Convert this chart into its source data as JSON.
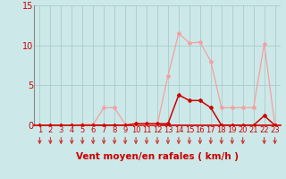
{
  "x": [
    1,
    2,
    3,
    4,
    5,
    6,
    7,
    8,
    9,
    10,
    11,
    12,
    13,
    14,
    15,
    16,
    17,
    18,
    19,
    20,
    21,
    22,
    23
  ],
  "y_rafales": [
    0.0,
    0.0,
    0.0,
    0.0,
    0.1,
    0.1,
    2.2,
    2.2,
    0.1,
    0.1,
    0.1,
    0.1,
    6.2,
    11.5,
    10.3,
    10.4,
    8.0,
    2.2,
    2.2,
    2.2,
    2.2,
    10.2,
    0.0
  ],
  "y_moyen": [
    0.0,
    0.0,
    0.0,
    0.0,
    0.0,
    0.0,
    0.0,
    0.0,
    0.0,
    0.2,
    0.2,
    0.2,
    0.2,
    3.8,
    3.1,
    3.1,
    2.2,
    0.0,
    0.0,
    0.0,
    0.0,
    1.2,
    0.0
  ],
  "color_rafales": "#f5a0a0",
  "color_moyen": "#cc0000",
  "arrow_color": "#cc2222",
  "bg_color": "#cce8e8",
  "grid_color": "#aacccc",
  "xlabel": "Vent moyen/en rafales ( km/h )",
  "ylabel_ticks": [
    0,
    5,
    10,
    15
  ],
  "ylim": [
    0,
    15
  ],
  "xlim": [
    0.5,
    23.5
  ],
  "xlabel_fontsize": 7.5,
  "tick_fontsize": 7,
  "axis_color": "#cc0000",
  "left_spine_color": "#888888"
}
